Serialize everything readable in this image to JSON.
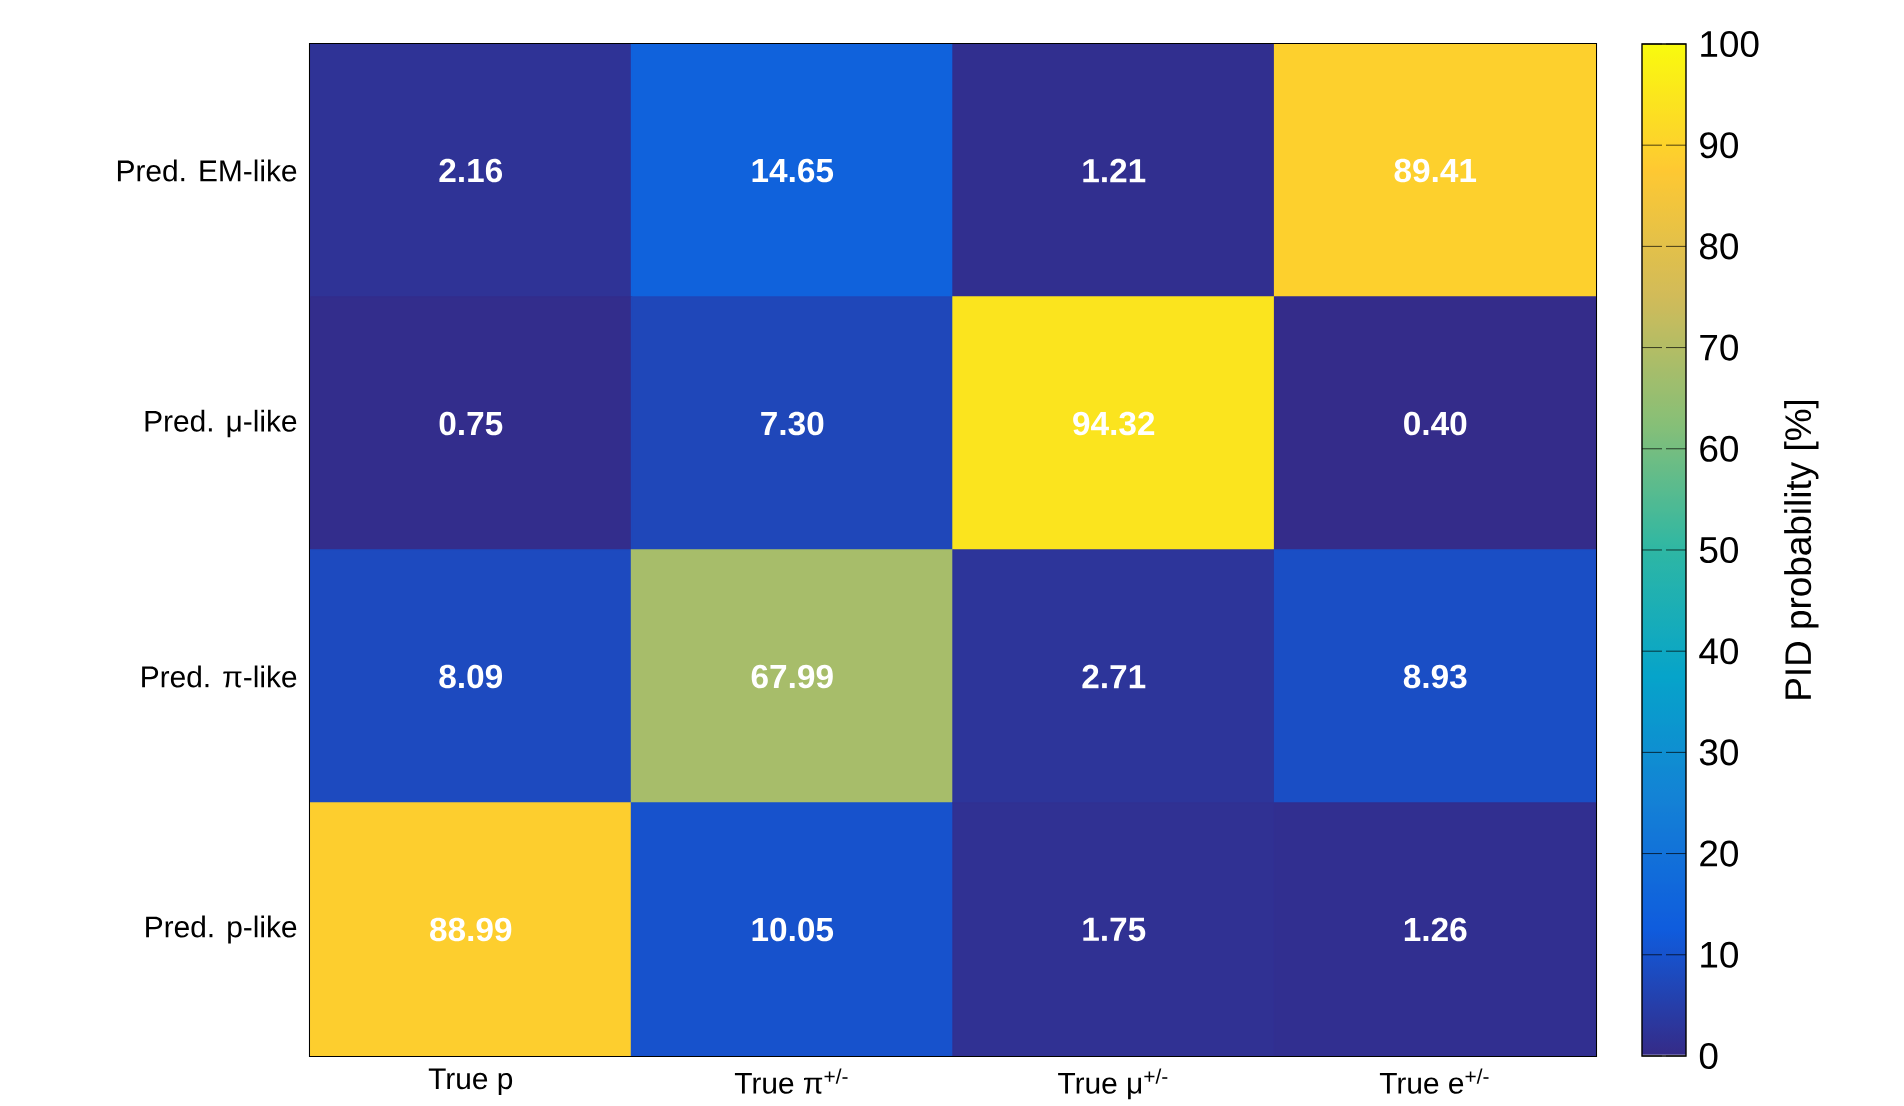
{
  "chart_data": {
    "type": "heatmap",
    "categories": [
      "True p",
      "True π$^{+/-}$",
      "True μ$^{+/-}$",
      "True e$^{+/-}$"
    ],
    "y_categories": [
      "Pred. EM-like",
      "Pred. μ-like",
      "Pred. π-like",
      "Pred. p-like"
    ],
    "cells": [
      [
        2.16,
        14.65,
        1.21,
        89.41
      ],
      [
        0.75,
        7.3,
        94.32,
        0.4
      ],
      [
        8.09,
        67.99,
        2.71,
        8.93
      ],
      [
        88.99,
        10.05,
        1.75,
        1.26
      ]
    ],
    "cell_labels": [
      [
        "2.16",
        "14.65",
        "1.21",
        "89.41"
      ],
      [
        "0.75",
        "7.30",
        "94.32",
        "0.40"
      ],
      [
        "8.09",
        "67.99",
        "2.71",
        "8.93"
      ],
      [
        "88.99",
        "10.05",
        "1.75",
        "1.26"
      ]
    ],
    "clim": [
      0,
      100
    ],
    "cticks": [
      0,
      10,
      20,
      30,
      40,
      50,
      60,
      70,
      80,
      90,
      100
    ],
    "clabel": "PID probability [%]"
  }
}
